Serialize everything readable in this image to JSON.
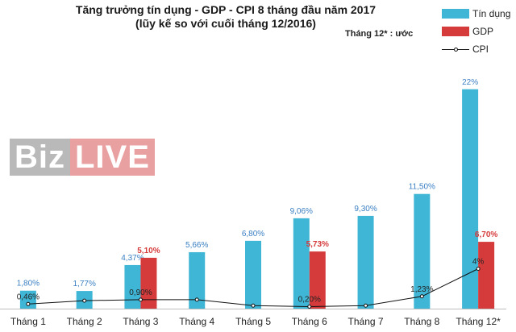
{
  "title": "Tăng trưởng tín dụng - GDP - CPI 8 tháng đầu năm 2017",
  "subtitle": "(lũy kế so với cuối tháng 12/2016)",
  "note": "Tháng 12* : ước",
  "watermark": {
    "part1": "Biz",
    "part2": "LIVE"
  },
  "colors": {
    "credit": "#3fb6d6",
    "gdp": "#d63b3b",
    "cpi": "#111111"
  },
  "chart_data": {
    "type": "bar",
    "title": "Tăng trưởng tín dụng - GDP - CPI 8 tháng đầu năm 2017",
    "subtitle": "(lũy kế so với cuối tháng 12/2016)",
    "categories": [
      "Tháng 1",
      "Tháng 2",
      "Tháng 3",
      "Tháng 4",
      "Tháng 5",
      "Tháng 6",
      "Tháng 7",
      "Tháng 8",
      "Tháng 12*"
    ],
    "ylim": [
      0,
      24
    ],
    "grid": false,
    "legend_position": "top-right",
    "series": [
      {
        "name": "Tín dụng",
        "type": "bar",
        "values": [
          1.8,
          1.77,
          4.37,
          5.66,
          6.8,
          9.06,
          9.3,
          11.5,
          22
        ],
        "labels": [
          "1,80%",
          "1,77%",
          "4,37%",
          "5,66%",
          "6,80%",
          "9,06%",
          "9,30%",
          "11,50%",
          "22%"
        ]
      },
      {
        "name": "GDP",
        "type": "bar",
        "values": [
          null,
          null,
          5.1,
          null,
          null,
          5.73,
          null,
          null,
          6.7
        ],
        "labels": [
          "",
          "",
          "5,10%",
          "",
          "",
          "5,73%",
          "",
          "",
          "6,70%"
        ]
      },
      {
        "name": "CPI",
        "type": "line",
        "values": [
          0.46,
          0.8,
          0.9,
          0.9,
          0.3,
          0.2,
          0.3,
          1.23,
          4
        ],
        "labels": [
          "0,46%",
          "",
          "0,90%",
          "",
          "",
          "0,20%",
          "",
          "1,23%",
          "4%"
        ]
      }
    ]
  }
}
